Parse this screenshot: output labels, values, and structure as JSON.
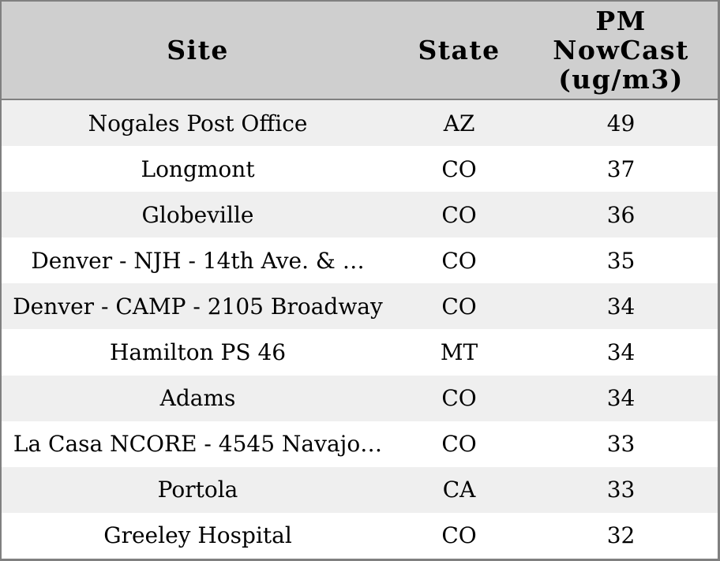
{
  "colors": {
    "header_bg": "#cfcfcf",
    "row_stripe": "#efefef",
    "row_plain": "#ffffff",
    "border": "#808080",
    "text": "#000000"
  },
  "table": {
    "columns": [
      {
        "id": "site",
        "label": "Site"
      },
      {
        "id": "state",
        "label": "State"
      },
      {
        "id": "pm",
        "label": "PM\nNowCast\n(ug/m3)"
      }
    ],
    "rows": [
      {
        "site": "Nogales Post Office",
        "state": "AZ",
        "pm": "49"
      },
      {
        "site": "Longmont",
        "state": "CO",
        "pm": "37"
      },
      {
        "site": "Globeville",
        "state": "CO",
        "pm": "36"
      },
      {
        "site": "Denver - NJH - 14th Ave. & …",
        "state": "CO",
        "pm": "35"
      },
      {
        "site": "Denver - CAMP - 2105 Broadway",
        "state": "CO",
        "pm": "34"
      },
      {
        "site": "Hamilton PS 46",
        "state": "MT",
        "pm": "34"
      },
      {
        "site": "Adams",
        "state": "CO",
        "pm": "34"
      },
      {
        "site": "La Casa NCORE - 4545 Navajo…",
        "state": "CO",
        "pm": "33"
      },
      {
        "site": "Portola",
        "state": "CA",
        "pm": "33"
      },
      {
        "site": "Greeley Hospital",
        "state": "CO",
        "pm": "32"
      }
    ]
  }
}
